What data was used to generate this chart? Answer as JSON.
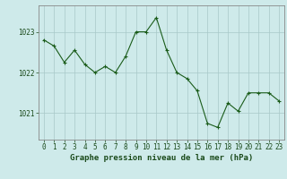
{
  "x": [
    0,
    1,
    2,
    3,
    4,
    5,
    6,
    7,
    8,
    9,
    10,
    11,
    12,
    13,
    14,
    15,
    16,
    17,
    18,
    19,
    20,
    21,
    22,
    23
  ],
  "y": [
    1022.8,
    1022.65,
    1022.25,
    1022.55,
    1022.2,
    1022.0,
    1022.15,
    1022.0,
    1022.4,
    1023.0,
    1023.0,
    1023.35,
    1022.55,
    1022.0,
    1021.85,
    1021.55,
    1020.75,
    1020.65,
    1021.25,
    1021.05,
    1021.5,
    1021.5,
    1021.5,
    1021.3
  ],
  "line_color": "#1a5c1a",
  "marker": "+",
  "marker_size": 3,
  "marker_linewidth": 0.8,
  "line_width": 0.8,
  "bg_color": "#ceeaea",
  "grid_color": "#a8c8c8",
  "axis_color": "#888888",
  "ylabel_left": [
    "1021",
    "1022",
    "1023"
  ],
  "yticks": [
    1021,
    1022,
    1023
  ],
  "ylim": [
    1020.35,
    1023.65
  ],
  "xlim": [
    -0.5,
    23.5
  ],
  "xticks": [
    0,
    1,
    2,
    3,
    4,
    5,
    6,
    7,
    8,
    9,
    10,
    11,
    12,
    13,
    14,
    15,
    16,
    17,
    18,
    19,
    20,
    21,
    22,
    23
  ],
  "xlabel": "Graphe pression niveau de la mer (hPa)",
  "xlabel_fontsize": 6.5,
  "tick_fontsize": 5.5,
  "text_color": "#1a4a1a"
}
